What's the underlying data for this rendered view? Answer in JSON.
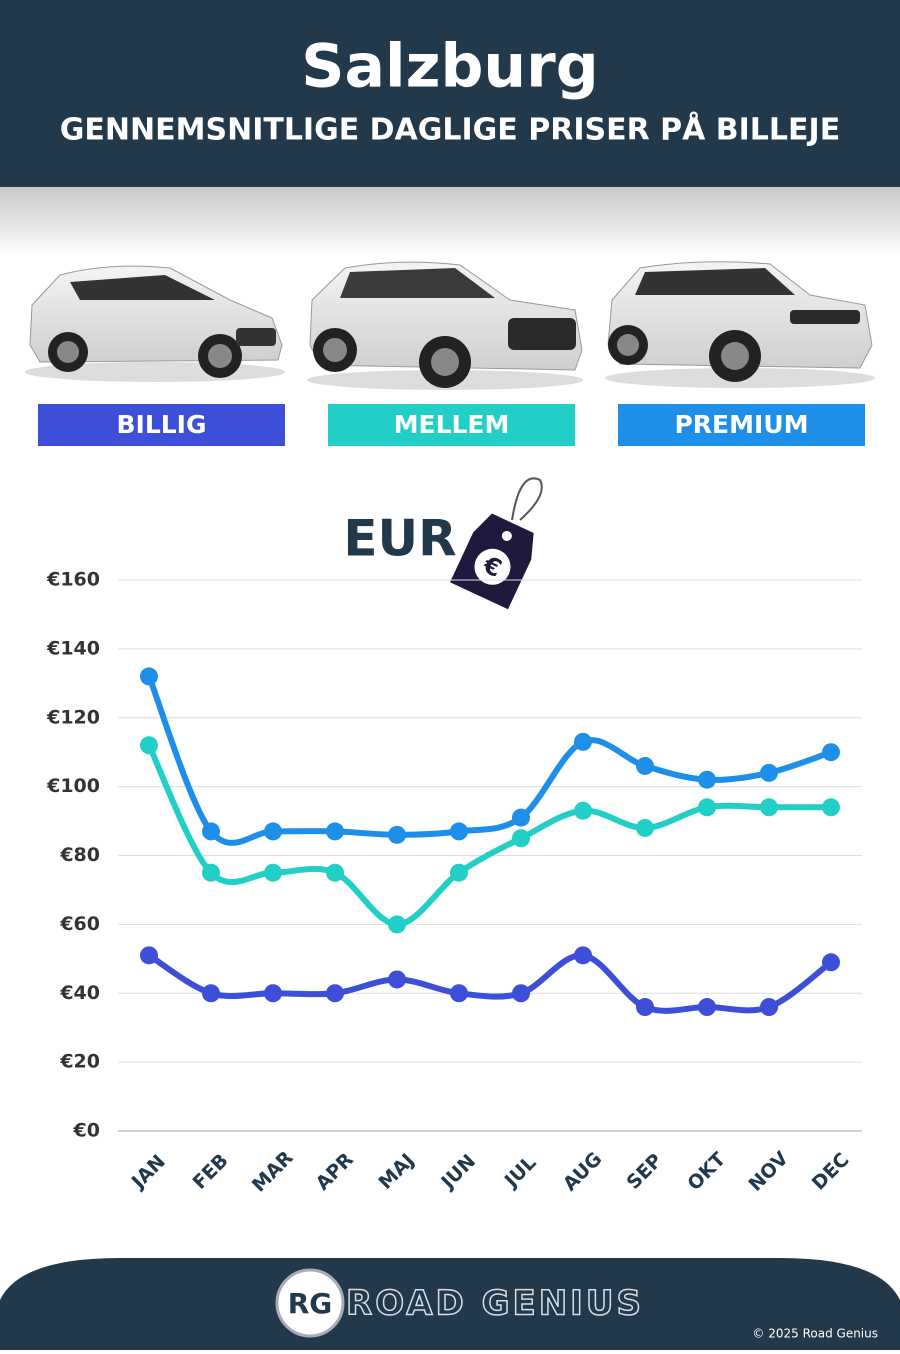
{
  "chart_data": {
    "type": "line",
    "title": "Salzburg",
    "subtitle": "GENNEMSNITLIGE DAGLIGE PRISER PÅ BILLEJE",
    "currency_label": "EUR",
    "categories": [
      "JAN",
      "FEB",
      "MAR",
      "APR",
      "MAJ",
      "JUN",
      "JUL",
      "AUG",
      "SEP",
      "OKT",
      "NOV",
      "DEC"
    ],
    "series": [
      {
        "name": "BILLIG",
        "color": "#3d4fd8",
        "values": [
          51,
          40,
          40,
          40,
          44,
          40,
          40,
          51,
          36,
          36,
          36,
          49
        ]
      },
      {
        "name": "MELLEM",
        "color": "#22cfc6",
        "values": [
          112,
          75,
          75,
          75,
          60,
          75,
          85,
          93,
          88,
          94,
          94,
          94
        ]
      },
      {
        "name": "PREMIUM",
        "color": "#1e8fe8",
        "values": [
          132,
          87,
          87,
          87,
          86,
          87,
          91,
          113,
          106,
          102,
          104,
          110
        ]
      }
    ],
    "ylim": [
      0,
      160
    ],
    "yticks": [
      {
        "value": 0,
        "label": "€0"
      },
      {
        "value": 20,
        "label": "€20"
      },
      {
        "value": 40,
        "label": "€40"
      },
      {
        "value": 60,
        "label": "€60"
      },
      {
        "value": 80,
        "label": "€80"
      },
      {
        "value": 100,
        "label": "€100"
      },
      {
        "value": 120,
        "label": "€120"
      },
      {
        "value": 140,
        "label": "€140"
      },
      {
        "value": 160,
        "label": "€160"
      }
    ],
    "grid": true
  },
  "footer": {
    "logo": "RG",
    "brand": "ROAD GENIUS",
    "copyright": "© 2025 Road Genius"
  }
}
